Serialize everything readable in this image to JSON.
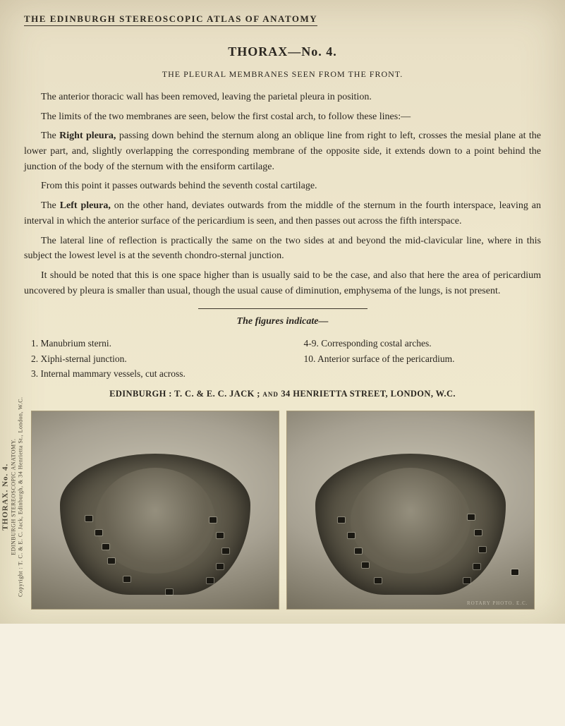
{
  "header": "THE EDINBURGH STEREOSCOPIC ATLAS OF ANATOMY",
  "title": "THORAX—No. 4.",
  "subtitle": "THE PLEURAL MEMBRANES SEEN FROM THE FRONT.",
  "paragraphs": {
    "p1": "The anterior thoracic wall has been removed, leaving the parietal pleura in position.",
    "p2": "The limits of the two membranes are seen, below the first costal arch, to follow these lines:—",
    "p3a": "The ",
    "p3b_bold": "Right pleura,",
    "p3c": " passing down behind the sternum along an oblique line from right to left, crosses the mesial plane at the lower part, and, slightly overlapping the corresponding membrane of the opposite side, it extends down to a point behind the junction of the body of the sternum with the ensiform cartilage.",
    "p4": "From this point it passes outwards behind the seventh costal cartilage.",
    "p5a": "The ",
    "p5b_bold": "Left pleura,",
    "p5c": " on the other hand, deviates outwards from the middle of the sternum in the fourth interspace, leaving an interval in which the anterior surface of the pericardium is seen, and then passes out across the fifth interspace.",
    "p6": "The lateral line of reflection is practically the same on the two sides at and beyond the mid-clavicular line, where in this subject the lowest level is at the seventh chondro-sternal junction.",
    "p7": "It should be noted that this is one space higher than is usually said to be the case, and also that here the area of pericardium uncovered by pleura is smaller than usual, though the usual cause of diminution, emphysema of the lungs, is not present."
  },
  "figures_indicate": "The figures indicate—",
  "legend": {
    "l1": "1. Manubrium sterni.",
    "l2": "2. Xiphi-sternal junction.",
    "l3": "3. Internal mammary vessels, cut across.",
    "r1": "4-9. Corresponding costal arches.",
    "r2": "10. Anterior surface of the pericardium."
  },
  "publisher_a": "EDINBURGH : T. C. & E. C. JACK ; ",
  "publisher_and": "and",
  "publisher_b": " 34 HENRIETTA STREET, LONDON, W.C.",
  "photo_credit": "ROTARY PHOTO. E.C.",
  "spine": {
    "line1": "THORAX. No. 4.",
    "line2": "EDINBURGH STEREOSCOPIC ANATOMY.",
    "line3": "Copyright : T. C. & E. C. Jack, Edinburgh, & 34 Henrietta St., London, W.C."
  },
  "markers": {
    "left_photo": [
      [
        76,
        148
      ],
      [
        90,
        168
      ],
      [
        100,
        188
      ],
      [
        108,
        208
      ],
      [
        130,
        234
      ],
      [
        252,
        150
      ],
      [
        262,
        172
      ],
      [
        270,
        194
      ],
      [
        262,
        216
      ],
      [
        248,
        236
      ],
      [
        190,
        252
      ]
    ],
    "right_photo": [
      [
        72,
        150
      ],
      [
        86,
        172
      ],
      [
        96,
        194
      ],
      [
        106,
        214
      ],
      [
        124,
        236
      ],
      [
        256,
        146
      ],
      [
        266,
        168
      ],
      [
        272,
        192
      ],
      [
        264,
        216
      ],
      [
        250,
        236
      ],
      [
        318,
        224
      ]
    ]
  }
}
